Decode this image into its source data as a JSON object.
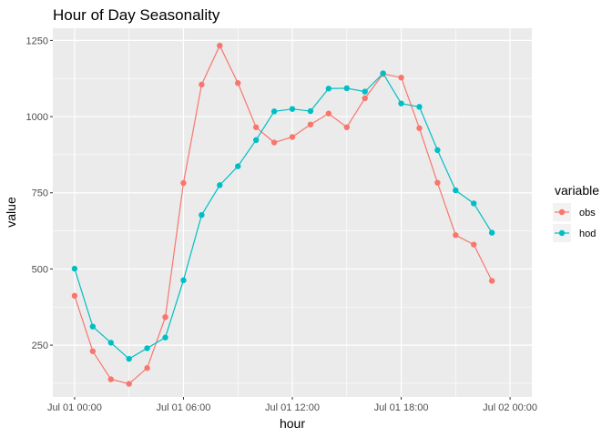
{
  "chart_data": {
    "type": "line",
    "title": "Hour of Day Seasonality",
    "xlabel": "hour",
    "ylabel": "value",
    "x": [
      "Jul 01 00:00",
      "Jul 01 01:00",
      "Jul 01 02:00",
      "Jul 01 03:00",
      "Jul 01 04:00",
      "Jul 01 05:00",
      "Jul 01 06:00",
      "Jul 01 07:00",
      "Jul 01 08:00",
      "Jul 01 09:00",
      "Jul 01 10:00",
      "Jul 01 11:00",
      "Jul 01 12:00",
      "Jul 01 13:00",
      "Jul 01 14:00",
      "Jul 01 15:00",
      "Jul 01 16:00",
      "Jul 01 17:00",
      "Jul 01 18:00",
      "Jul 01 19:00",
      "Jul 01 20:00",
      "Jul 01 21:00",
      "Jul 01 22:00",
      "Jul 01 23:00"
    ],
    "x_ticks": [
      "Jul 01 00:00",
      "Jul 01 06:00",
      "Jul 01 12:00",
      "Jul 01 18:00",
      "Jul 02 00:00"
    ],
    "y_ticks": [
      250,
      500,
      750,
      1000,
      1250
    ],
    "ylim": [
      80,
      1290
    ],
    "grid": true,
    "legend": {
      "title": "variable",
      "position": "right"
    },
    "series": [
      {
        "name": "obs",
        "color": "#F8766D",
        "values": [
          412,
          230,
          138,
          123,
          175,
          342,
          782,
          1105,
          1233,
          1110,
          965,
          915,
          933,
          974,
          1010,
          965,
          1060,
          1140,
          1128,
          962,
          783,
          611,
          580,
          461
        ]
      },
      {
        "name": "hod",
        "color": "#00BFC4",
        "values": [
          501,
          311,
          258,
          205,
          240,
          275,
          463,
          677,
          775,
          837,
          923,
          1017,
          1025,
          1018,
          1092,
          1093,
          1082,
          1142,
          1043,
          1032,
          890,
          758,
          715,
          619
        ]
      }
    ]
  }
}
